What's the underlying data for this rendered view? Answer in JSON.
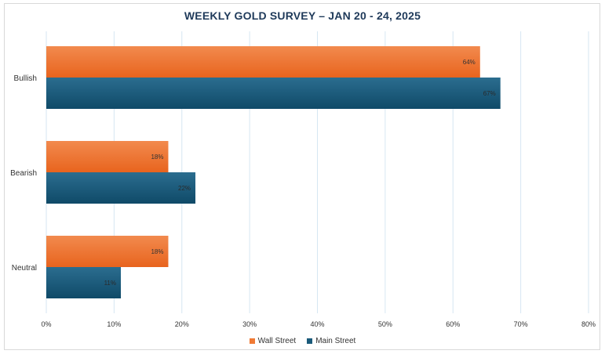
{
  "chart_data": {
    "type": "bar",
    "orientation": "horizontal",
    "title": "WEEKLY GOLD SURVEY – JAN 20 - 24, 2025",
    "categories": [
      "Bullish",
      "Bearish",
      "Neutral"
    ],
    "series": [
      {
        "name": "Wall Street",
        "values": [
          64,
          18,
          18
        ],
        "color": "#f07a35"
      },
      {
        "name": "Main Street",
        "values": [
          67,
          22,
          11
        ],
        "color": "#1a5a7a"
      }
    ],
    "xlim": [
      0,
      80
    ],
    "xticks": [
      0,
      10,
      20,
      30,
      40,
      50,
      60,
      70,
      80
    ],
    "tick_suffix": "%",
    "value_suffix": "%",
    "grid": true,
    "legend_position": "bottom"
  }
}
